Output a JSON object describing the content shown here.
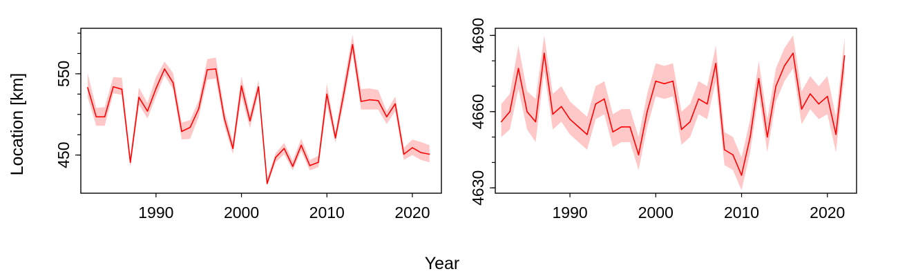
{
  "shared": {
    "xlabel": "Year",
    "ylabel": "Location [km]",
    "line_color": "#ff0000",
    "band_color": "#ffc8c8"
  },
  "chart_data": [
    {
      "type": "line",
      "title": "",
      "xlim": [
        1981.2,
        2023.4
      ],
      "ylim": [
        403,
        606
      ],
      "x_ticks": [
        1990,
        2000,
        2010,
        2020
      ],
      "y_tick_labels": [
        450,
        550
      ],
      "y_minor_ticks": [
        450,
        475,
        500,
        525,
        550,
        575,
        600
      ],
      "grid": false,
      "legend": "none",
      "series": [
        {
          "x": [
            1982,
            1983,
            1984,
            1985,
            1986,
            1987,
            1988,
            1989,
            1990,
            1991,
            1992,
            1993,
            1994,
            1995,
            1996,
            1997,
            1998,
            1999,
            2000,
            2001,
            2002,
            2003,
            2004,
            2005,
            2006,
            2007,
            2008,
            2009,
            2010,
            2011,
            2012,
            2013,
            2014,
            2015,
            2016,
            2017,
            2018,
            2019,
            2020,
            2021,
            2022
          ],
          "y": [
            533,
            497,
            497,
            534,
            531,
            441,
            521,
            504,
            532,
            556,
            539,
            479,
            484,
            507,
            555,
            556,
            495,
            458,
            535,
            492,
            534,
            415,
            447,
            458,
            436,
            462,
            437,
            441,
            525,
            471,
            527,
            586,
            516,
            518,
            517,
            497,
            513,
            451,
            459,
            453,
            451
          ],
          "lower": [
            521,
            486,
            486,
            526,
            524,
            435,
            512,
            495,
            522,
            548,
            531,
            469,
            470,
            497,
            543,
            544,
            486,
            451,
            522,
            483,
            526,
            412,
            441,
            451,
            431,
            455,
            431,
            435,
            512,
            465,
            516,
            575,
            506,
            506,
            506,
            488,
            504,
            444,
            450,
            444,
            441
          ],
          "upper": [
            551,
            508,
            509,
            546,
            545,
            449,
            533,
            514,
            546,
            565,
            551,
            490,
            493,
            517,
            568,
            570,
            505,
            467,
            547,
            501,
            542,
            421,
            452,
            465,
            443,
            470,
            444,
            449,
            538,
            478,
            540,
            598,
            531,
            532,
            530,
            504,
            522,
            459,
            469,
            466,
            462
          ]
        }
      ]
    },
    {
      "type": "line",
      "title": "",
      "xlim": [
        1981.3,
        2023.4
      ],
      "ylim": [
        4627.9,
        4692.8
      ],
      "x_ticks": [
        1990,
        2000,
        2010,
        2020
      ],
      "y_tick_labels": [
        4630,
        4660,
        4690
      ],
      "y_minor_ticks": [
        4630,
        4640,
        4650,
        4660,
        4670,
        4680,
        4690
      ],
      "grid": false,
      "legend": "none",
      "series": [
        {
          "x": [
            1982,
            1983,
            1984,
            1985,
            1986,
            1987,
            1988,
            1989,
            1990,
            1991,
            1992,
            1993,
            1994,
            1995,
            1996,
            1997,
            1998,
            1999,
            2000,
            2001,
            2002,
            2003,
            2004,
            2005,
            2006,
            2007,
            2008,
            2009,
            2010,
            2011,
            2012,
            2013,
            2014,
            2015,
            2016,
            2017,
            2018,
            2019,
            2020,
            2021,
            2022
          ],
          "y": [
            4656,
            4660,
            4677,
            4660,
            4656,
            4683,
            4659,
            4662,
            4657,
            4654,
            4651,
            4663,
            4665,
            4652,
            4654,
            4654,
            4643,
            4660,
            4672,
            4671,
            4672,
            4653,
            4656,
            4665,
            4663,
            4679,
            4645,
            4643,
            4635,
            4650,
            4673,
            4650,
            4670,
            4678,
            4683,
            4661,
            4667,
            4663,
            4666,
            4651,
            4682
          ],
          "lower": [
            4650,
            4653,
            4669,
            4653,
            4648,
            4676,
            4653,
            4656,
            4651,
            4648,
            4645,
            4657,
            4659,
            4646,
            4648,
            4648,
            4637,
            4654,
            4666,
            4665,
            4666,
            4647,
            4650,
            4659,
            4657,
            4672,
            4639,
            4637,
            4629,
            4644,
            4667,
            4644,
            4664,
            4672,
            4677,
            4655,
            4661,
            4657,
            4659,
            4644,
            4675
          ],
          "upper": [
            4663,
            4667,
            4686,
            4668,
            4665,
            4690,
            4667,
            4670,
            4664,
            4661,
            4658,
            4670,
            4672,
            4659,
            4661,
            4661,
            4650,
            4667,
            4679,
            4678,
            4679,
            4660,
            4663,
            4672,
            4670,
            4686,
            4652,
            4650,
            4642,
            4657,
            4680,
            4657,
            4677,
            4685,
            4690,
            4668,
            4674,
            4670,
            4674,
            4658,
            4689
          ]
        }
      ]
    }
  ]
}
